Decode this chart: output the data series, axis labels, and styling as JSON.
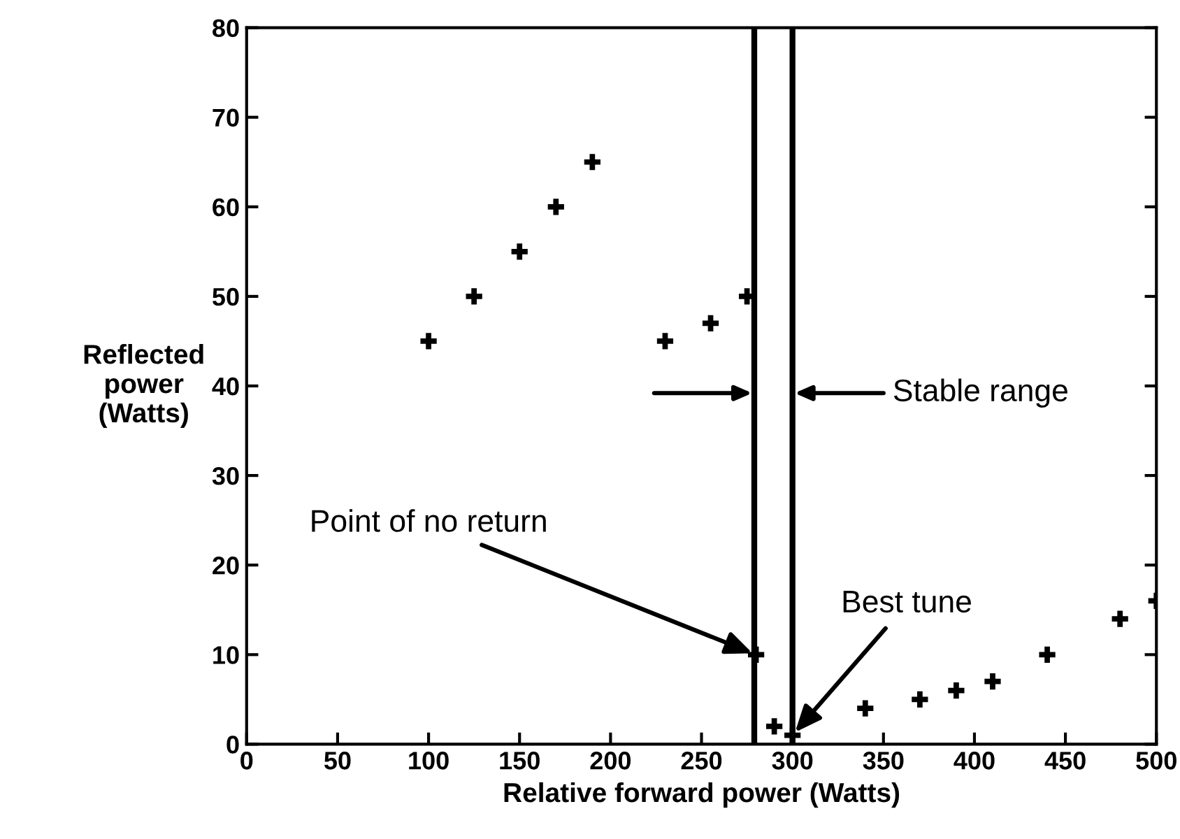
{
  "chart_data": {
    "type": "scatter",
    "xlabel": "Relative forward power (Watts)",
    "ylabel": "Reflected\npower\n(Watts)",
    "x": [
      100,
      125,
      150,
      170,
      190,
      230,
      255,
      275,
      280,
      290,
      300,
      340,
      370,
      390,
      410,
      440,
      480,
      500
    ],
    "series": [
      {
        "color": "#000000",
        "values": [
          45,
          50,
          55,
          60,
          65,
          45,
          47,
          50,
          10,
          2,
          1,
          4,
          5,
          6,
          7,
          10,
          14,
          16
        ]
      }
    ],
    "xlim": [
      0,
      500
    ],
    "ylim": [
      0,
      80
    ],
    "xticks": [
      0,
      50,
      100,
      150,
      200,
      250,
      300,
      350,
      400,
      450,
      500
    ],
    "yticks": [
      0,
      10,
      20,
      30,
      40,
      50,
      60,
      70,
      80
    ],
    "ref_lines": [
      {
        "axis": "x",
        "value": 279,
        "color": "#000000"
      },
      {
        "axis": "x",
        "value": 300,
        "color": "#000000"
      }
    ],
    "annotations": [
      "Stable range",
      {
        "text": "Point of no return",
        "x": 280,
        "y": 10
      },
      {
        "text": "Best tune",
        "x": 300,
        "y": 1
      }
    ],
    "marker": "cross",
    "grid": false,
    "legend": false
  }
}
